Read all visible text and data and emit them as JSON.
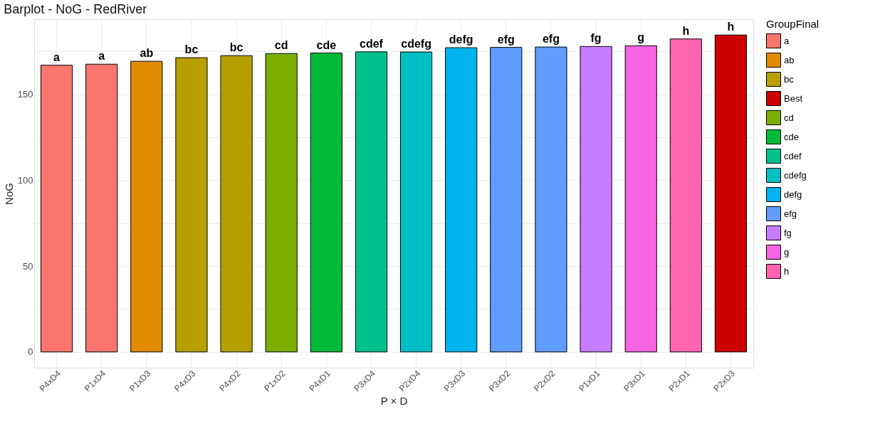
{
  "chart_data": {
    "type": "bar",
    "title": "Barplot - NoG - RedRiver",
    "xlabel": "P × D",
    "ylabel": "NoG",
    "legend_title": "GroupFinal",
    "categories": [
      "P4xD4",
      "P1xD4",
      "P1xD3",
      "P4xD3",
      "P4xD2",
      "P1xD2",
      "P4xD1",
      "P3xD4",
      "P2xD4",
      "P3xD3",
      "P3xD2",
      "P2xD2",
      "P1xD1",
      "P3xD1",
      "P2xD1",
      "P2xD3"
    ],
    "series": [
      {
        "name": "a",
        "color": "#f8766d",
        "values": [
          167.0,
          167.6,
          null,
          null,
          null,
          null,
          null,
          null,
          null,
          null,
          null,
          null,
          null,
          null,
          null,
          null
        ]
      },
      {
        "name": "ab",
        "color": "#e08b00",
        "values": [
          null,
          null,
          169.3,
          null,
          null,
          null,
          null,
          null,
          null,
          null,
          null,
          null,
          null,
          null,
          null,
          null
        ]
      },
      {
        "name": "bc",
        "color": "#b79f00",
        "values": [
          null,
          null,
          null,
          171.4,
          172.6,
          null,
          null,
          null,
          null,
          null,
          null,
          null,
          null,
          null,
          null,
          null
        ]
      },
      {
        "name": "Best",
        "color": "#cc0000",
        "values": [
          null,
          null,
          null,
          null,
          null,
          null,
          null,
          null,
          null,
          null,
          null,
          null,
          null,
          null,
          null,
          184.6
        ]
      },
      {
        "name": "cd",
        "color": "#7cae00",
        "values": [
          null,
          null,
          null,
          null,
          null,
          173.8,
          null,
          null,
          null,
          null,
          null,
          null,
          null,
          null,
          null,
          null
        ]
      },
      {
        "name": "cde",
        "color": "#00ba38",
        "values": [
          null,
          null,
          null,
          null,
          null,
          null,
          174.1,
          null,
          null,
          null,
          null,
          null,
          null,
          null,
          null,
          null
        ]
      },
      {
        "name": "cdef",
        "color": "#00c08b",
        "values": [
          null,
          null,
          null,
          null,
          null,
          null,
          null,
          174.8,
          null,
          null,
          null,
          null,
          null,
          null,
          null,
          null
        ]
      },
      {
        "name": "cdefg",
        "color": "#00bfc4",
        "values": [
          null,
          null,
          null,
          null,
          null,
          null,
          null,
          null,
          174.7,
          null,
          null,
          null,
          null,
          null,
          null,
          null
        ]
      },
      {
        "name": "defg",
        "color": "#00b4f0",
        "values": [
          null,
          null,
          null,
          null,
          null,
          null,
          null,
          null,
          null,
          177.2,
          null,
          null,
          null,
          null,
          null,
          null
        ]
      },
      {
        "name": "efg",
        "color": "#619cff",
        "values": [
          null,
          null,
          null,
          null,
          null,
          null,
          null,
          null,
          null,
          null,
          177.4,
          177.6,
          null,
          null,
          null,
          null
        ]
      },
      {
        "name": "fg",
        "color": "#c77cff",
        "values": [
          null,
          null,
          null,
          null,
          null,
          null,
          null,
          null,
          null,
          null,
          null,
          null,
          177.9,
          null,
          null,
          null
        ]
      },
      {
        "name": "g",
        "color": "#f564e3",
        "values": [
          null,
          null,
          null,
          null,
          null,
          null,
          null,
          null,
          null,
          null,
          null,
          null,
          null,
          178.3,
          null,
          null
        ]
      },
      {
        "name": "h",
        "color": "#ff64b0",
        "values": [
          null,
          null,
          null,
          null,
          null,
          null,
          null,
          null,
          null,
          null,
          null,
          null,
          null,
          null,
          182.3,
          null
        ]
      }
    ],
    "annotations": [
      {
        "text": "a",
        "x": "P4xD4",
        "y": 167.0
      },
      {
        "text": "a",
        "x": "P1xD4",
        "y": 167.6
      },
      {
        "text": "ab",
        "x": "P1xD3",
        "y": 169.3
      },
      {
        "text": "bc",
        "x": "P4xD3",
        "y": 171.4
      },
      {
        "text": "bc",
        "x": "P4xD2",
        "y": 172.6
      },
      {
        "text": "cd",
        "x": "P1xD2",
        "y": 173.8
      },
      {
        "text": "cde",
        "x": "P4xD1",
        "y": 174.1
      },
      {
        "text": "cdef",
        "x": "P3xD4",
        "y": 174.8
      },
      {
        "text": "cdefg",
        "x": "P2xD4",
        "y": 174.7
      },
      {
        "text": "defg",
        "x": "P3xD3",
        "y": 177.2
      },
      {
        "text": "efg",
        "x": "P3xD2",
        "y": 177.4
      },
      {
        "text": "efg",
        "x": "P2xD2",
        "y": 177.6
      },
      {
        "text": "fg",
        "x": "P1xD1",
        "y": 177.9
      },
      {
        "text": "g",
        "x": "P3xD1",
        "y": 178.3
      },
      {
        "text": "h",
        "x": "P2xD1",
        "y": 182.3
      },
      {
        "text": "h",
        "x": "P2xD3",
        "y": 184.6
      }
    ],
    "ylim": [
      -9.2,
      193.8
    ],
    "yticks": [
      {
        "value": 0,
        "label": "0"
      },
      {
        "value": 25,
        "label": null
      },
      {
        "value": 50,
        "label": "50"
      },
      {
        "value": 75,
        "label": null
      },
      {
        "value": 100,
        "label": "100"
      },
      {
        "value": 125,
        "label": null
      },
      {
        "value": 150,
        "label": "150"
      },
      {
        "value": 175,
        "label": null
      }
    ],
    "grid": true,
    "legend": "right"
  }
}
